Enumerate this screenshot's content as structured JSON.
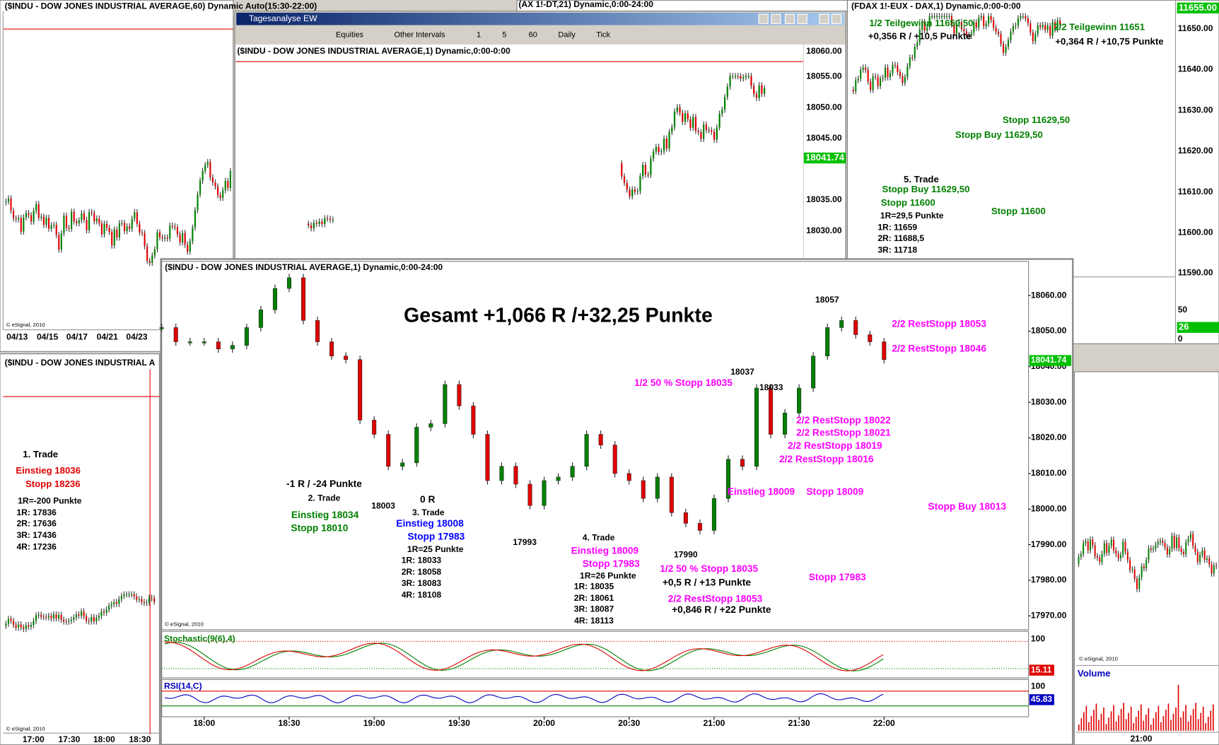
{
  "windows": {
    "dow60": {
      "title": "($INDU - DOW JONES INDUSTRIAL AVERAGE,60) Dynamic Auto(15:30-22:00)",
      "xticks": [
        "04/13",
        "04/15",
        "04/17",
        "04/21",
        "04/23"
      ],
      "copyright": "© eSignal, 2010"
    },
    "dow_left": {
      "title": "($INDU - DOW JONES INDUSTRIAL A",
      "notes": [
        "1. Trade",
        "Einstieg 18036",
        "Stopp 18236",
        "1R=-200 Punkte",
        "1R: 17836",
        "2R: 17636",
        "3R: 17436",
        "4R: 17236"
      ],
      "xticks": [
        "17:00",
        "17:30",
        "18:00",
        "18:30"
      ],
      "copyright": "© eSignal, 2010"
    },
    "fdax_strip": {
      "title": "(AX 1!-DT,21) Dynamic,0:00-24:00"
    },
    "tagesanalyse": {
      "title": "Tagesanalyse EW",
      "toolbar": [
        "Equities",
        "Other Intervals",
        "1",
        "5",
        "60",
        "Daily",
        "Tick"
      ],
      "chart_title": "($INDU - DOW JONES INDUSTRIAL AVERAGE,1) Dynamic,0:00-0:00",
      "yticks": [
        "18060.00",
        "18055.00",
        "18050.00",
        "18045.00",
        "18035.00",
        "18030.00"
      ],
      "last_price": "18041.74"
    },
    "dax": {
      "title": "(FDAX 1!-EUX - DAX,1) Dynamic,0:00-0:00",
      "yticks": [
        "11650.00",
        "11640.00",
        "11630.00",
        "11620.00",
        "11610.00",
        "11600.00",
        "11590.00"
      ],
      "last_price": "11655.00",
      "lower_ticks": [
        "50",
        "0"
      ],
      "lower_last": "26",
      "notes": [
        "1/2 Teilgewinn 11650,50",
        "+0,356 R / +10,5 Punkte",
        "2/2 Teilgewinn 11651",
        "+0,364 R / +10,75 Punkte",
        "Stopp 11629,50",
        "Stopp Buy 11629,50",
        "5. Trade",
        "Stopp Buy 11629,50",
        "Stopp 11600",
        "1R=29,5 Punkte",
        "1R: 11659",
        "2R: 11688,5",
        "3R: 11718",
        "Stopp 11600"
      ]
    },
    "volume": {
      "label": "Volume",
      "xtick": "21:00",
      "copyright": "© eSignal, 2010"
    }
  },
  "chart_data": {
    "type": "candlestick",
    "title": "($INDU - DOW JONES INDUSTRIAL AVERAGE,1) Dynamic,0:00-24:00",
    "x": [
      1065,
      1070,
      1075,
      1080,
      1085,
      1090,
      1095,
      1100,
      1105,
      1110,
      1115,
      1120,
      1125,
      1130,
      1135,
      1140,
      1145,
      1150,
      1155,
      1160,
      1165,
      1170,
      1175,
      1180,
      1185,
      1190,
      1195,
      1200,
      1205,
      1210,
      1215,
      1220,
      1225,
      1230,
      1235,
      1240,
      1245,
      1250,
      1255,
      1260,
      1265,
      1270,
      1275,
      1280,
      1285,
      1290,
      1295,
      1300,
      1305,
      1310,
      1315,
      1320
    ],
    "values": [
      18051,
      18047,
      18047,
      18047,
      18045,
      18046,
      18051,
      18056,
      18062,
      18065,
      18053,
      18047,
      18043,
      18042,
      18025,
      18021,
      18012,
      18013,
      18023,
      18024,
      18035,
      18029,
      18021,
      18008,
      18012,
      18007,
      18001,
      18008,
      18009,
      18012,
      18021,
      18018,
      18010,
      18008,
      18003,
      18009,
      17999,
      17996,
      17994,
      18003,
      18014,
      18012,
      18034,
      18021,
      18027,
      18034,
      18043,
      18051,
      18053,
      18049,
      18047,
      18042
    ],
    "up_color": "#008000",
    "down_color": "#e00000",
    "xlim": [
      1065,
      1371
    ],
    "ylim": [
      17966.1,
      18069.6
    ],
    "xticks": [
      {
        "value": 1080,
        "label": "18:00"
      },
      {
        "value": 1110,
        "label": "18:30"
      },
      {
        "value": 1140,
        "label": "19:00"
      },
      {
        "value": 1170,
        "label": "19:30"
      },
      {
        "value": 1200,
        "label": "20:00"
      },
      {
        "value": 1230,
        "label": "20:30"
      },
      {
        "value": 1260,
        "label": "21:00"
      },
      {
        "value": 1290,
        "label": "21:30"
      },
      {
        "value": 1320,
        "label": "22:00"
      }
    ],
    "yticks": [
      {
        "value": 18060,
        "label": "18060.00"
      },
      {
        "value": 18050,
        "label": "18050.00"
      },
      {
        "value": 18040,
        "label": "18040.00"
      },
      {
        "value": 18030,
        "label": "18030.00"
      },
      {
        "value": 18020,
        "label": "18020.00"
      },
      {
        "value": 18010,
        "label": "18010.00"
      },
      {
        "value": 18000,
        "label": "18000.00"
      },
      {
        "value": 17990,
        "label": "17990.00"
      },
      {
        "value": 17980,
        "label": "17980.00"
      },
      {
        "value": 17970,
        "label": "17970.00"
      }
    ],
    "last_price": {
      "value": 18041.74,
      "label": "18041.74"
    },
    "copyright": "© eSignal, 2010",
    "stochastic": {
      "label": "Stochastic(9(6),4)",
      "ytick": 100,
      "last": 15.11
    },
    "rsi": {
      "label": "RSI(14,C)",
      "ytick": 100,
      "last": 45.83
    },
    "annotations": [
      {
        "text": "Gesamt +1,066 R /+32,25 Punkte",
        "color": "#000000"
      },
      {
        "text": "18057",
        "color": "#000000"
      },
      {
        "text": "2/2 RestStopp 18053",
        "color": "#ff00ff"
      },
      {
        "text": "2/2 RestStopp 18046",
        "color": "#ff00ff"
      },
      {
        "text": "18037",
        "color": "#000000"
      },
      {
        "text": "1/2 50 % Stopp 18035",
        "color": "#ff00ff"
      },
      {
        "text": "18033",
        "color": "#000000"
      },
      {
        "text": "2/2 RestStopp 18022",
        "color": "#ff00ff"
      },
      {
        "text": "2/2 RestStopp 18021",
        "color": "#ff00ff"
      },
      {
        "text": "2/2 RestStopp 18019",
        "color": "#ff00ff"
      },
      {
        "text": "2/2 RestStopp 18016",
        "color": "#ff00ff"
      },
      {
        "text": "Einstieg 18009",
        "color": "#ff00ff"
      },
      {
        "text": "Stopp 18009",
        "color": "#ff00ff"
      },
      {
        "text": "Stopp Buy 18013",
        "color": "#ff00ff"
      },
      {
        "text": "Stopp 17983",
        "color": "#ff00ff"
      },
      {
        "text": "-1 R / -24 Punkte",
        "color": "#000000"
      },
      {
        "text": "2. Trade",
        "color": "#000000"
      },
      {
        "text": "18003",
        "color": "#000000"
      },
      {
        "text": "Einstieg 18034",
        "color": "#008000"
      },
      {
        "text": "Stopp 18010",
        "color": "#008000"
      },
      {
        "text": "0 R",
        "color": "#000000"
      },
      {
        "text": "3. Trade",
        "color": "#000000"
      },
      {
        "text": "Einstieg 18008",
        "color": "#0000ff"
      },
      {
        "text": "Stopp 17983",
        "color": "#0000ff"
      },
      {
        "text": "1R=25 Punkte",
        "color": "#000000"
      },
      {
        "text": "1R: 18033",
        "color": "#000000"
      },
      {
        "text": "2R: 18058",
        "color": "#000000"
      },
      {
        "text": "3R: 18083",
        "color": "#000000"
      },
      {
        "text": "4R: 18108",
        "color": "#000000"
      },
      {
        "text": "17993",
        "color": "#000000"
      },
      {
        "text": "4. Trade",
        "color": "#000000"
      },
      {
        "text": "Einstieg 18009",
        "color": "#ff00ff"
      },
      {
        "text": "Stopp 17983",
        "color": "#ff00ff"
      },
      {
        "text": "1R=26 Punkte",
        "color": "#000000"
      },
      {
        "text": "1R: 18035",
        "color": "#000000"
      },
      {
        "text": "2R: 18061",
        "color": "#000000"
      },
      {
        "text": "3R: 18087",
        "color": "#000000"
      },
      {
        "text": "4R: 18113",
        "color": "#000000"
      },
      {
        "text": "17990",
        "color": "#000000"
      },
      {
        "text": "1/2 50 % Stopp 18035",
        "color": "#ff00ff"
      },
      {
        "text": "+0,5 R / +13 Punkte",
        "color": "#000000"
      },
      {
        "text": "2/2 RestStopp 18053",
        "color": "#ff00ff"
      },
      {
        "text": "+0,846 R / +22 Punkte",
        "color": "#000000"
      }
    ]
  }
}
